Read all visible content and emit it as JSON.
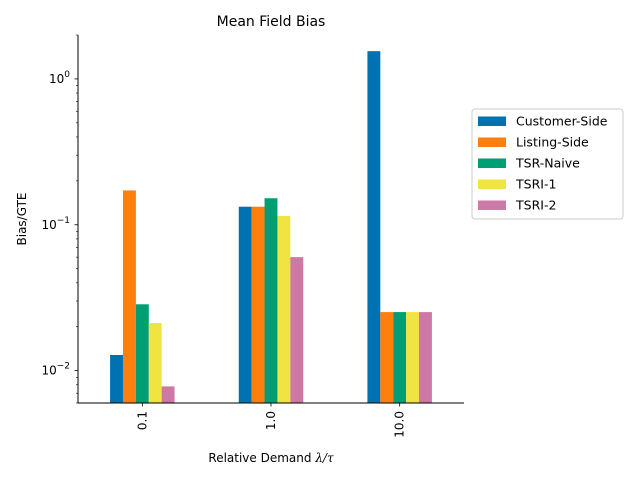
{
  "chart_data": {
    "type": "bar",
    "title": "Mean Field Bias",
    "xlabel_prefix": "Relative Demand ",
    "xlabel_math": "λ/τ",
    "ylabel": "Bias/GTE",
    "yscale": "log",
    "ylim": [
      0.006,
      2.0
    ],
    "categories": [
      "0.1",
      "1.0",
      "10.0"
    ],
    "y_tick_labels": [
      {
        "value": 0.01,
        "base": "10",
        "exp": "−2"
      },
      {
        "value": 0.1,
        "base": "10",
        "exp": "−1"
      },
      {
        "value": 1,
        "base": "10",
        "exp": "0"
      }
    ],
    "grid": false,
    "legend_placement": "right",
    "series": [
      {
        "name": "Customer-Side",
        "color": "#0072B2",
        "values": [
          0.0128,
          0.133,
          1.55
        ]
      },
      {
        "name": "Listing-Side",
        "color": "#FF7F0E",
        "values": [
          0.172,
          0.133,
          0.0252
        ]
      },
      {
        "name": "TSR-Naive",
        "color": "#009E73",
        "values": [
          0.0285,
          0.152,
          0.0252
        ]
      },
      {
        "name": "TSRI-1",
        "color": "#F0E442",
        "values": [
          0.0212,
          0.115,
          0.0252
        ]
      },
      {
        "name": "TSRI-2",
        "color": "#CC79A7",
        "values": [
          0.0078,
          0.06,
          0.0252
        ]
      }
    ]
  }
}
